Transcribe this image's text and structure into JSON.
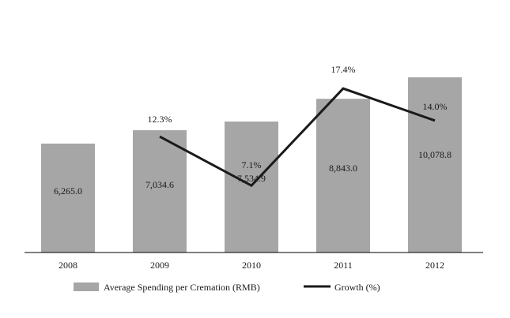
{
  "chart_data": {
    "type": "bar",
    "title": "",
    "xlabel": "",
    "ylabel": "",
    "categories": [
      "2008",
      "2009",
      "2010",
      "2011",
      "2012"
    ],
    "series": [
      {
        "name": "Average Spending per Cremation (RMB)",
        "type": "bar",
        "values": [
          6265.0,
          7034.6,
          7534.9,
          8843.0,
          10078.8
        ],
        "labels": [
          "6,265.0",
          "7,034.6",
          "7,534.9",
          "8,843.0",
          "10,078.8"
        ],
        "color": "#a6a6a6"
      },
      {
        "name": "Growth (%)",
        "type": "line",
        "values": [
          null,
          12.3,
          7.1,
          17.4,
          14.0
        ],
        "labels": [
          "",
          "12.3%",
          "7.1%",
          "17.4%",
          "14.0%"
        ],
        "color": "#1a1a1a"
      }
    ],
    "bar_ylim": [
      0,
      11350
    ],
    "growth_ylim": [
      0,
      21.6
    ],
    "grid": false,
    "legend_position": "bottom"
  }
}
